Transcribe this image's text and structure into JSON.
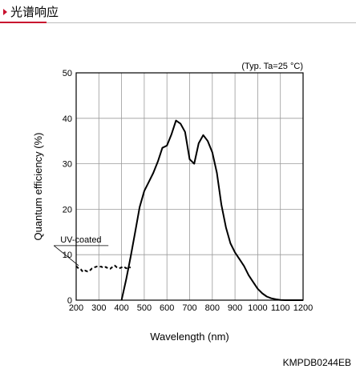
{
  "header": {
    "title": "光谱响应"
  },
  "figure_code": "KMPDB0244EB",
  "chart_data": {
    "type": "line",
    "title": "",
    "xlabel": "Wavelength (nm)",
    "ylabel": "Quantum efficiency (%)",
    "xlim": [
      200,
      1200
    ],
    "ylim": [
      0,
      50
    ],
    "xticks": [
      200,
      300,
      400,
      500,
      600,
      700,
      800,
      900,
      1000,
      1100,
      1200
    ],
    "yticks": [
      0,
      10,
      20,
      30,
      40,
      50
    ],
    "grid": true,
    "condition_note": "(Typ. Ta=25 °C)",
    "series": [
      {
        "name": "",
        "style": "solid",
        "x": [
          400,
          420,
          440,
          460,
          480,
          500,
          520,
          540,
          560,
          580,
          600,
          620,
          640,
          660,
          680,
          700,
          720,
          740,
          760,
          780,
          800,
          820,
          840,
          860,
          880,
          900,
          920,
          940,
          960,
          980,
          1000,
          1020,
          1040,
          1060,
          1080,
          1100,
          1120,
          1140,
          1160,
          1180,
          1200
        ],
        "values": [
          0,
          4.5,
          9.5,
          15,
          20.5,
          24,
          26,
          28,
          30.5,
          33.5,
          34,
          36.5,
          39.5,
          38.8,
          37,
          31,
          30,
          34.5,
          36.3,
          35,
          32.5,
          28,
          21,
          16,
          12.5,
          10.5,
          9,
          7.5,
          5.5,
          4,
          2.5,
          1.5,
          0.8,
          0.4,
          0.2,
          0.05,
          0,
          0,
          0,
          0,
          0
        ]
      },
      {
        "name": "UV-coated",
        "style": "dashed",
        "x": [
          200,
          210,
          220,
          230,
          240,
          250,
          260,
          270,
          280,
          290,
          300,
          310,
          320,
          330,
          340,
          350,
          360,
          370,
          380,
          390,
          400,
          410,
          420,
          430,
          440
        ],
        "values": [
          7.5,
          7,
          6.8,
          6.2,
          6.5,
          6.3,
          6.5,
          7,
          7.2,
          7.4,
          7.3,
          7.4,
          7.1,
          7.3,
          7.0,
          6.9,
          7.3,
          7.6,
          7.2,
          7.0,
          7.2,
          7.4,
          7.0,
          7.2,
          7.2
        ]
      }
    ],
    "annotations": [
      {
        "text": "UV-coated",
        "x": 236,
        "y": 12
      }
    ]
  }
}
